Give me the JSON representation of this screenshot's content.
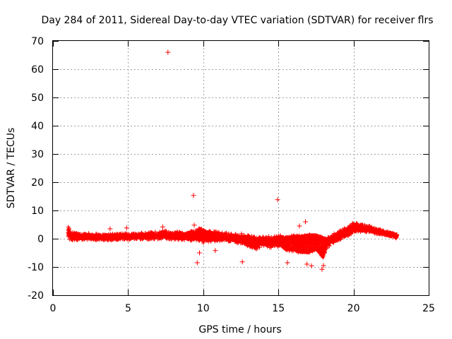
{
  "chart_data": {
    "type": "scatter",
    "title": "Day 284 of 2011, Sidereal Day-to-day VTEC variation (SDTVAR) for receiver flrs",
    "xlabel": "GPS time / hours",
    "ylabel": "SDTVAR / TECUs",
    "xlim": [
      0,
      25
    ],
    "ylim": [
      -20,
      70
    ],
    "xticks": [
      0,
      5,
      10,
      15,
      20,
      25
    ],
    "yticks": [
      -20,
      -10,
      0,
      10,
      20,
      30,
      40,
      50,
      60,
      70
    ],
    "grid": true,
    "marker": "+",
    "color": "#ff0000",
    "band": {
      "x": [
        1.0,
        1.1,
        1.3,
        1.6,
        2.0,
        3.0,
        4.0,
        5.0,
        6.0,
        7.0,
        7.5,
        8.0,
        8.5,
        9.0,
        9.5,
        9.8,
        10.0,
        10.3,
        10.6,
        11.0,
        11.5,
        12.0,
        12.5,
        13.0,
        13.5,
        14.0,
        14.5,
        15.0,
        15.5,
        16.0,
        16.5,
        17.0,
        17.5,
        18.0,
        18.3,
        18.6,
        19.0,
        19.5,
        20.0,
        20.3,
        20.6,
        21.0,
        21.5,
        22.0,
        22.5,
        22.9
      ],
      "low": [
        1.0,
        -0.5,
        -0.8,
        -0.5,
        -0.3,
        -0.3,
        -0.4,
        -0.2,
        -0.2,
        0.0,
        -0.5,
        -0.3,
        -0.5,
        -0.8,
        -1.0,
        -1.5,
        -2.0,
        -1.5,
        -1.5,
        -1.0,
        -1.0,
        -1.2,
        -2.0,
        -3.0,
        -4.0,
        -2.5,
        -3.5,
        -3.0,
        -5.0,
        -5.0,
        -6.0,
        -6.0,
        -5.0,
        -8.0,
        -3.0,
        -2.0,
        -1.0,
        0.5,
        2.0,
        2.5,
        2.5,
        2.5,
        2.0,
        1.5,
        1.0,
        0.5
      ],
      "high": [
        5.0,
        3.5,
        2.5,
        2.0,
        1.8,
        1.5,
        1.5,
        1.8,
        2.0,
        2.3,
        3.0,
        2.5,
        2.5,
        2.5,
        3.5,
        4.5,
        4.0,
        3.5,
        3.0,
        2.5,
        2.0,
        2.0,
        2.0,
        1.5,
        1.0,
        1.0,
        1.0,
        1.5,
        1.5,
        2.0,
        2.0,
        2.5,
        2.5,
        1.5,
        1.0,
        1.5,
        3.0,
        4.0,
        6.0,
        5.5,
        5.0,
        4.5,
        3.5,
        2.5,
        1.8,
        1.2
      ],
      "density": 3200
    },
    "points": [
      {
        "x": 7.65,
        "y": 66.0
      },
      {
        "x": 9.35,
        "y": 15.3
      },
      {
        "x": 14.95,
        "y": 13.8
      },
      {
        "x": 16.8,
        "y": 6.0
      },
      {
        "x": 16.4,
        "y": 4.5
      },
      {
        "x": 9.6,
        "y": -8.5
      },
      {
        "x": 9.75,
        "y": -5.0
      },
      {
        "x": 10.8,
        "y": -4.2
      },
      {
        "x": 12.6,
        "y": -8.2
      },
      {
        "x": 16.9,
        "y": -9.0
      },
      {
        "x": 17.9,
        "y": -10.8
      },
      {
        "x": 18.0,
        "y": -9.5
      },
      {
        "x": 17.2,
        "y": -9.6
      },
      {
        "x": 15.6,
        "y": -8.5
      },
      {
        "x": 3.8,
        "y": 3.5
      },
      {
        "x": 4.9,
        "y": 3.8
      },
      {
        "x": 7.3,
        "y": 4.2
      },
      {
        "x": 9.4,
        "y": 4.8
      }
    ]
  }
}
